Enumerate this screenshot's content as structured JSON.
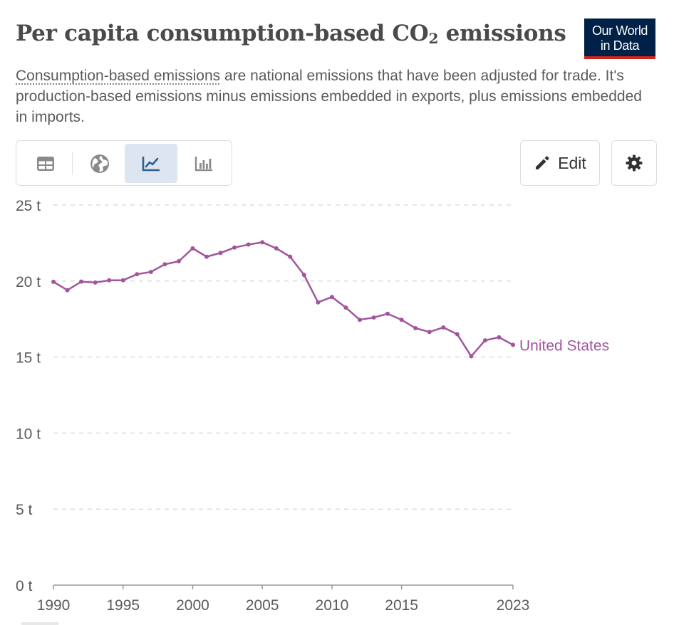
{
  "header": {
    "title_main": "Per capita consumption-based CO",
    "title_sub": "2",
    "title_end": " emissions",
    "subtitle_link": "Consumption-based emissions",
    "subtitle_rest": " are national emissions that have been adjusted for trade. It's production-based emissions minus emissions embedded in exports, plus emissions embedded in imports."
  },
  "logo": {
    "line1": "Our World",
    "line2": "in Data",
    "bg_color": "#002147",
    "accent_color": "#ce261e"
  },
  "toolbar": {
    "tabs": [
      {
        "icon": "table-icon",
        "active": false
      },
      {
        "icon": "globe-icon",
        "active": false
      },
      {
        "icon": "line-chart-icon",
        "active": true
      },
      {
        "icon": "bar-chart-icon",
        "active": false
      }
    ],
    "edit_label": "Edit",
    "edit_icon": "pencil-icon",
    "settings_icon": "gear-icon"
  },
  "colors": {
    "series": "#a2559c",
    "grid": "#dddddd",
    "axis_text": "#5b5b5b"
  },
  "chart_data": {
    "type": "line",
    "title": "Per capita consumption-based CO₂ emissions",
    "ylim": [
      0,
      25
    ],
    "yticks": [
      0,
      5,
      10,
      15,
      20,
      25
    ],
    "ytick_labels": [
      "0 t",
      "5 t",
      "10 t",
      "15 t",
      "20 t",
      "25 t"
    ],
    "xlim": [
      1990,
      2023
    ],
    "xticks": [
      1990,
      1995,
      2000,
      2005,
      2010,
      2015,
      2023
    ],
    "xtick_labels": [
      "1990",
      "1995",
      "2000",
      "2005",
      "2010",
      "2015",
      "2023"
    ],
    "grid": true,
    "legend": "line-end label",
    "series": [
      {
        "name": "United States",
        "x": [
          1990,
          1991,
          1992,
          1993,
          1994,
          1995,
          1996,
          1997,
          1998,
          1999,
          2000,
          2001,
          2002,
          2003,
          2004,
          2005,
          2006,
          2007,
          2008,
          2009,
          2010,
          2011,
          2012,
          2013,
          2014,
          2015,
          2016,
          2017,
          2018,
          2019,
          2020,
          2021,
          2022,
          2023
        ],
        "y": [
          19.95,
          19.4,
          19.96,
          19.9,
          20.05,
          20.05,
          20.45,
          20.6,
          21.1,
          21.3,
          22.15,
          21.6,
          21.85,
          22.2,
          22.4,
          22.55,
          22.15,
          21.6,
          20.4,
          18.6,
          18.95,
          18.25,
          17.45,
          17.6,
          17.85,
          17.45,
          16.9,
          16.65,
          16.95,
          16.5,
          15.05,
          16.1,
          16.3,
          15.8
        ]
      }
    ]
  }
}
